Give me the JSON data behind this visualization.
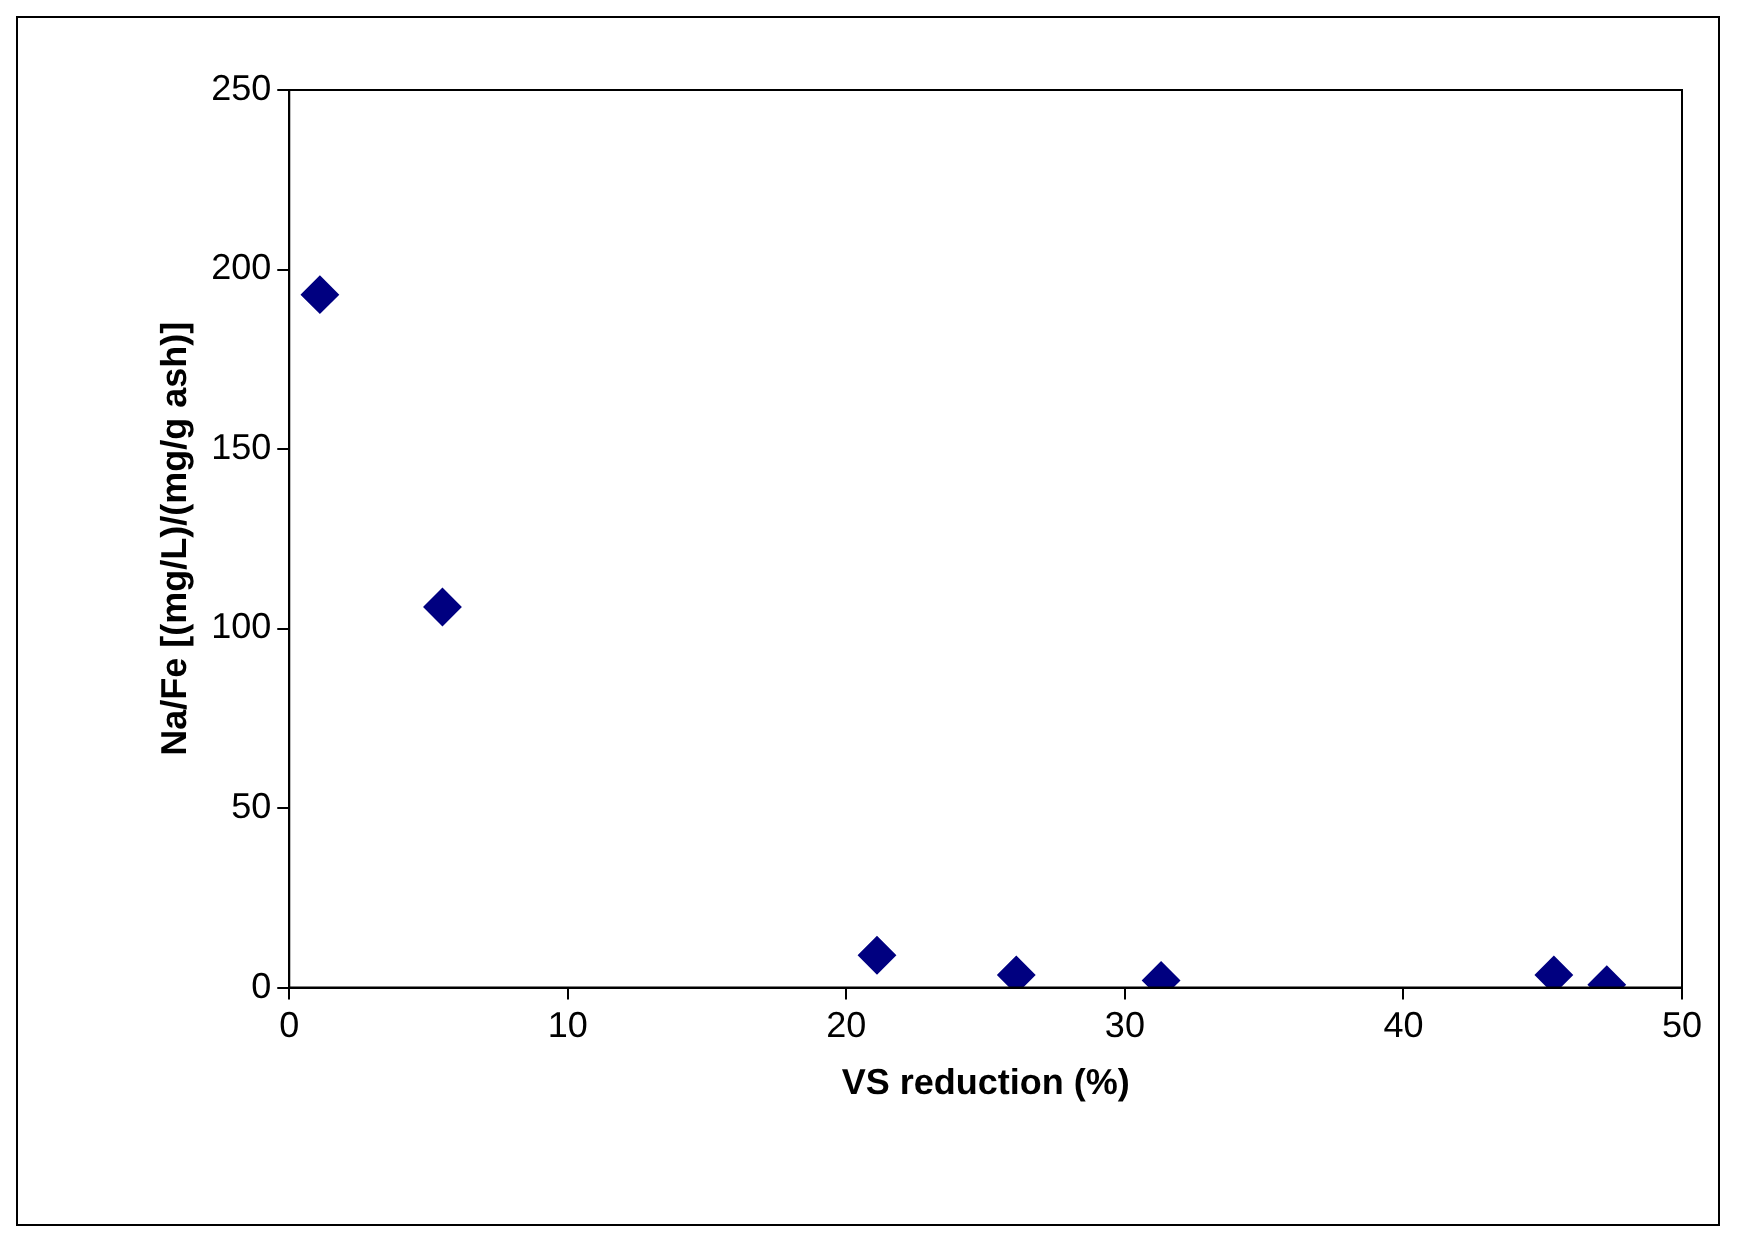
{
  "chart_data": {
    "type": "scatter",
    "xlabel": "VS reduction (%)",
    "ylabel": "Na/Fe [(mg/L)/(mg/g ash)]",
    "x": [
      1.1,
      5.5,
      21.1,
      26.1,
      31.3,
      45.4,
      47.3
    ],
    "series": [
      {
        "color": "#000080",
        "values": [
          193,
          106,
          9,
          3.5,
          2,
          3.5,
          0.8
        ]
      }
    ],
    "xlim": [
      0,
      50
    ],
    "xticks": [
      0,
      10,
      20,
      30,
      40,
      50
    ],
    "ylim": [
      0,
      250
    ],
    "yticks": [
      0,
      50,
      100,
      150,
      200,
      250
    ],
    "grid": false,
    "legend": false,
    "marker": "diamond"
  }
}
